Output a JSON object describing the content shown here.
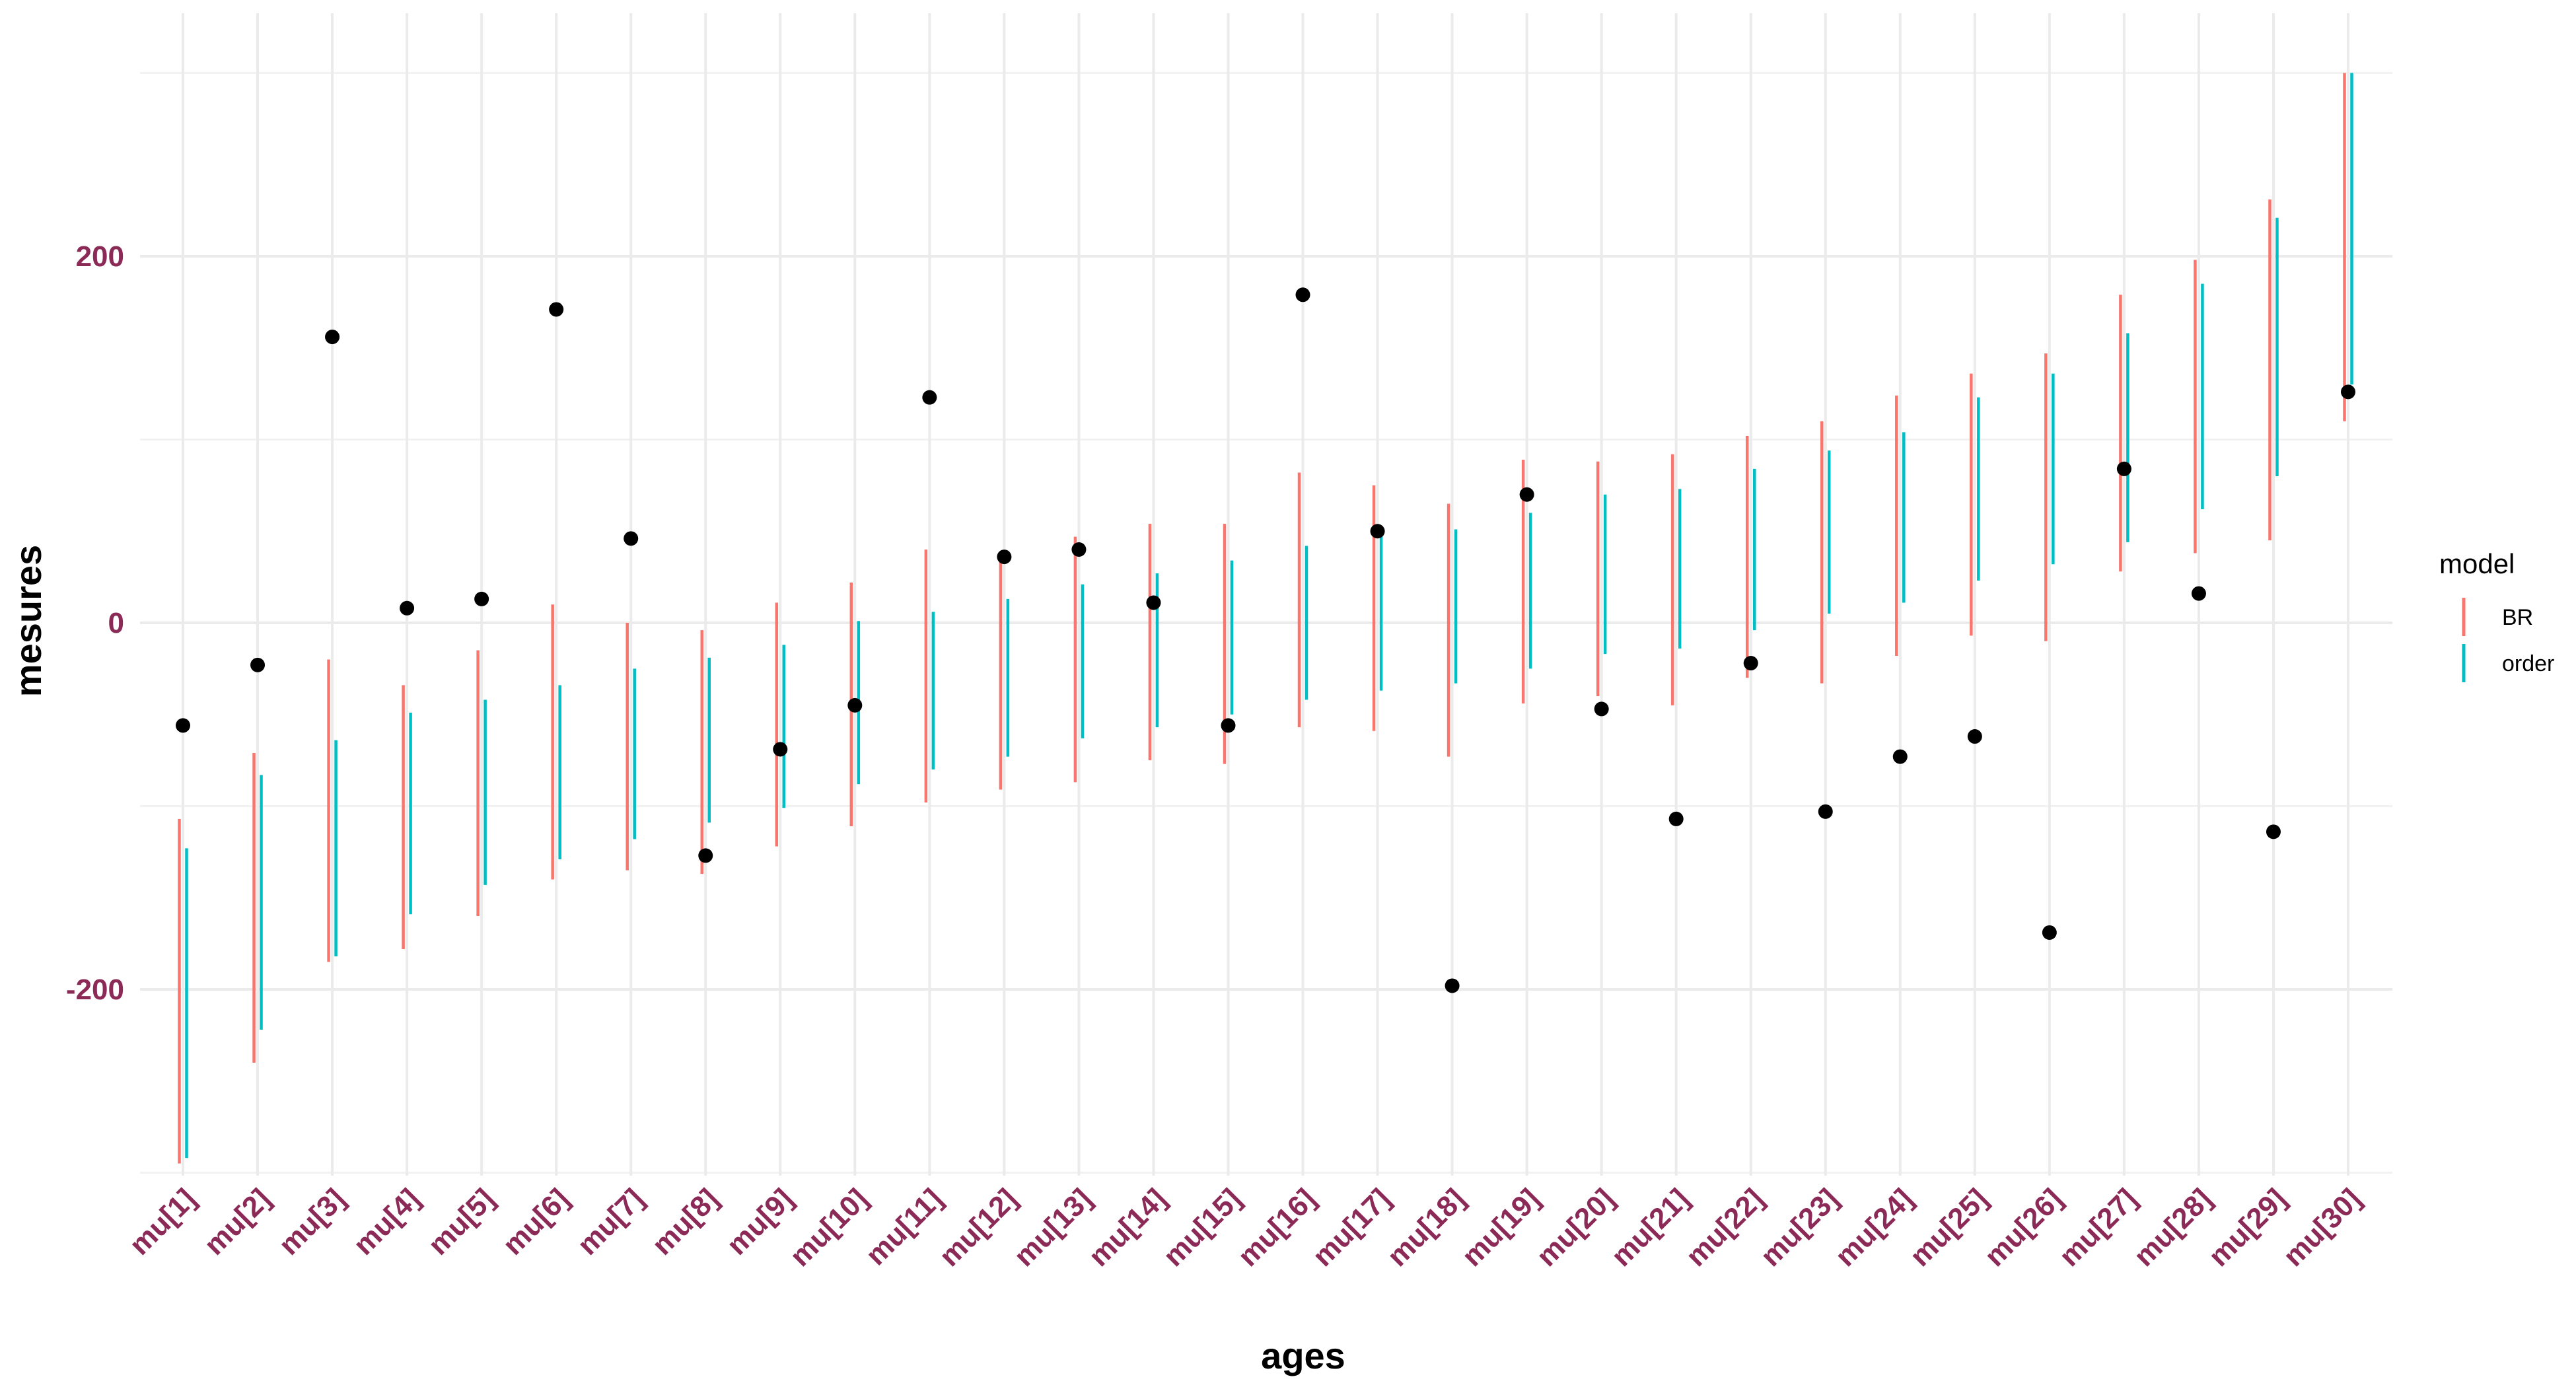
{
  "chart_data": {
    "type": "errorbar-scatter",
    "xlabel": "ages",
    "ylabel": "mesures",
    "categories": [
      "mu[1]",
      "mu[2]",
      "mu[3]",
      "mu[4]",
      "mu[5]",
      "mu[6]",
      "mu[7]",
      "mu[8]",
      "mu[9]",
      "mu[10]",
      "mu[11]",
      "mu[12]",
      "mu[13]",
      "mu[14]",
      "mu[15]",
      "mu[16]",
      "mu[17]",
      "mu[18]",
      "mu[19]",
      "mu[20]",
      "mu[21]",
      "mu[22]",
      "mu[23]",
      "mu[24]",
      "mu[25]",
      "mu[26]",
      "mu[27]",
      "mu[28]",
      "mu[29]",
      "mu[30]"
    ],
    "ylim": [
      -300,
      300
    ],
    "yticks": [
      -200,
      0,
      200
    ],
    "grid": true,
    "legend": {
      "title": "model",
      "position": "right",
      "entries": [
        {
          "label": "BR",
          "color": "#F8766D"
        },
        {
          "label": "order",
          "color": "#00BFC4"
        }
      ]
    },
    "series": [
      {
        "name": "BR",
        "color": "#F8766D",
        "low": [
          -295,
          -240,
          -185,
          -178,
          -160,
          -140,
          -135,
          -137,
          -122,
          -111,
          -98,
          -91,
          -87,
          -75,
          -77,
          -57,
          -59,
          -73,
          -44,
          -40,
          -45,
          -30,
          -33,
          -18,
          -7,
          -10,
          28,
          38,
          45,
          110
        ],
        "high": [
          -107,
          -71,
          -20,
          -34,
          -15,
          10,
          0,
          -4,
          11,
          22,
          40,
          37,
          47,
          54,
          54,
          82,
          75,
          65,
          89,
          88,
          92,
          102,
          110,
          124,
          136,
          147,
          179,
          198,
          231,
          300
        ]
      },
      {
        "name": "order",
        "color": "#00BFC4",
        "low": [
          -292,
          -222,
          -182,
          -159,
          -143,
          -129,
          -118,
          -109,
          -101,
          -88,
          -80,
          -73,
          -63,
          -57,
          -50,
          -42,
          -37,
          -33,
          -25,
          -17,
          -14,
          -4,
          5,
          11,
          23,
          32,
          44,
          62,
          80,
          130
        ]
      },
      {
        "name": "order-upper",
        "color": "#00BFC4",
        "high": [
          -123,
          -83,
          -64,
          -49,
          -42,
          -34,
          -25,
          -19,
          -12,
          1,
          6,
          13,
          21,
          27,
          34,
          42,
          48,
          51,
          60,
          70,
          73,
          84,
          94,
          104,
          123,
          136,
          158,
          185,
          221,
          300
        ]
      },
      {
        "name": "observed",
        "color": "#000000",
        "values": [
          -56,
          -23,
          156,
          8,
          13,
          171,
          46,
          -127,
          -69,
          -45,
          123,
          36,
          40,
          11,
          -56,
          179,
          50,
          -198,
          70,
          -47,
          -107,
          -22,
          -103,
          -73,
          -62,
          -169,
          84,
          16,
          -114,
          126
        ]
      }
    ]
  }
}
